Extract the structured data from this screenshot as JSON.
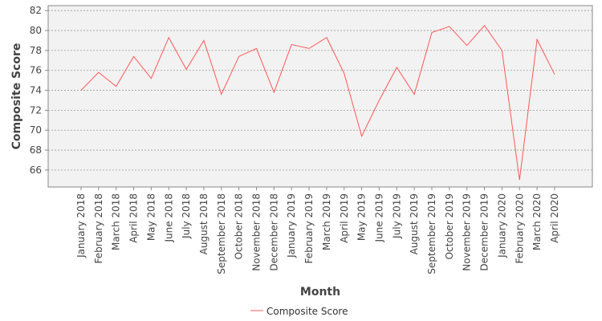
{
  "chart_data": {
    "type": "line",
    "title": "",
    "xlabel": "Month",
    "ylabel": "Composite Score",
    "ylim": [
      64.3,
      82.5
    ],
    "yticks": [
      66,
      68,
      70,
      72,
      74,
      76,
      78,
      80,
      82
    ],
    "grid": true,
    "legend_position": "bottom-center",
    "categories": [
      "January 2018",
      "February 2018",
      "March 2018",
      "April 2018",
      "May 2018",
      "June 2018",
      "July 2018",
      "August 2018",
      "September 2018",
      "October 2018",
      "November 2018",
      "December 2018",
      "January 2019",
      "February 2019",
      "March 2019",
      "April 2019",
      "May 2019",
      "June 2019",
      "July 2019",
      "August 2019",
      "September 2019",
      "October 2019",
      "November 2019",
      "December 2019",
      "January 2020",
      "February 2020",
      "March 2020",
      "April 2020"
    ],
    "series": [
      {
        "name": "Composite Score",
        "color": "#ff5555",
        "values": [
          74.0,
          75.8,
          74.4,
          77.4,
          75.2,
          79.3,
          76.1,
          79.0,
          73.6,
          77.4,
          78.2,
          73.8,
          78.6,
          78.2,
          79.3,
          75.7,
          69.4,
          73.0,
          76.3,
          73.6,
          79.8,
          80.4,
          78.5,
          80.5,
          78.0,
          65.0,
          79.1,
          75.6
        ]
      }
    ]
  }
}
